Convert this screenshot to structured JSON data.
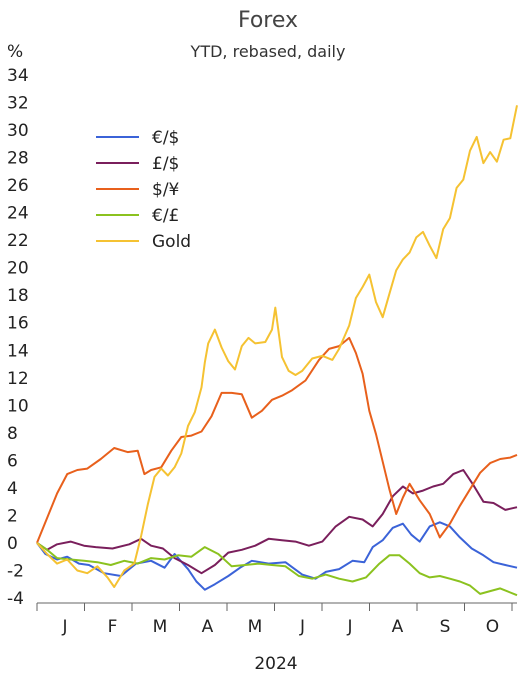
{
  "chart_data": {
    "type": "line",
    "title": "Forex",
    "subtitle": "YTD, rebased, daily",
    "ylabel": "%",
    "xlabel": "2024",
    "ylim": [
      -4,
      34
    ],
    "yticks": [
      34,
      32,
      30,
      28,
      26,
      24,
      22,
      20,
      18,
      16,
      14,
      12,
      10,
      8,
      6,
      4,
      2,
      0,
      -2,
      -4
    ],
    "month_labels": [
      "J",
      "F",
      "M",
      "A",
      "M",
      "J",
      "J",
      "A",
      "S",
      "O"
    ],
    "legend_position": "top-left",
    "grid": false,
    "series": [
      {
        "name": "€/$",
        "color": "#3b63d8",
        "points": [
          [
            0,
            0
          ],
          [
            5,
            -0.8
          ],
          [
            12,
            -1.2
          ],
          [
            18,
            -1
          ],
          [
            25,
            -1.5
          ],
          [
            31,
            -1.6
          ],
          [
            40,
            -2.2
          ],
          [
            50,
            -2.4
          ],
          [
            59,
            -1.5
          ],
          [
            68,
            -1.3
          ],
          [
            76,
            -1.8
          ],
          [
            82,
            -0.8
          ],
          [
            90,
            -1.9
          ],
          [
            95,
            -2.8
          ],
          [
            100,
            -3.4
          ],
          [
            106,
            -3
          ],
          [
            114,
            -2.4
          ],
          [
            121,
            -1.8
          ],
          [
            128,
            -1.3
          ],
          [
            138,
            -1.5
          ],
          [
            148,
            -1.4
          ],
          [
            158,
            -2.3
          ],
          [
            166,
            -2.6
          ],
          [
            172,
            -2.1
          ],
          [
            180,
            -1.9
          ],
          [
            188,
            -1.3
          ],
          [
            195,
            -1.4
          ],
          [
            200,
            -0.3
          ],
          [
            206,
            0.2
          ],
          [
            212,
            1.1
          ],
          [
            218,
            1.4
          ],
          [
            223,
            0.6
          ],
          [
            228,
            0.1
          ],
          [
            234,
            1.2
          ],
          [
            240,
            1.5
          ],
          [
            246,
            1.2
          ],
          [
            252,
            0.4
          ],
          [
            259,
            -0.4
          ],
          [
            266,
            -0.9
          ],
          [
            272,
            -1.4
          ],
          [
            279,
            -1.6
          ],
          [
            286,
            -1.8
          ]
        ]
      },
      {
        "name": "£/$",
        "color": "#7a1f5c",
        "points": [
          [
            0,
            0
          ],
          [
            6,
            -0.5
          ],
          [
            12,
            -0.1
          ],
          [
            20,
            0.1
          ],
          [
            28,
            -0.2
          ],
          [
            35,
            -0.3
          ],
          [
            45,
            -0.4
          ],
          [
            55,
            -0.1
          ],
          [
            62,
            0.3
          ],
          [
            68,
            -0.2
          ],
          [
            75,
            -0.4
          ],
          [
            82,
            -1.1
          ],
          [
            90,
            -1.6
          ],
          [
            98,
            -2.2
          ],
          [
            106,
            -1.6
          ],
          [
            114,
            -0.7
          ],
          [
            122,
            -0.5
          ],
          [
            130,
            -0.2
          ],
          [
            138,
            0.3
          ],
          [
            146,
            0.2
          ],
          [
            154,
            0.1
          ],
          [
            162,
            -0.2
          ],
          [
            170,
            0.1
          ],
          [
            178,
            1.2
          ],
          [
            186,
            1.9
          ],
          [
            194,
            1.7
          ],
          [
            200,
            1.2
          ],
          [
            206,
            2.1
          ],
          [
            212,
            3.4
          ],
          [
            218,
            4.1
          ],
          [
            224,
            3.6
          ],
          [
            230,
            3.8
          ],
          [
            236,
            4.1
          ],
          [
            242,
            4.3
          ],
          [
            248,
            5
          ],
          [
            254,
            5.3
          ],
          [
            260,
            4.2
          ],
          [
            266,
            3
          ],
          [
            272,
            2.9
          ],
          [
            279,
            2.4
          ],
          [
            286,
            2.6
          ]
        ]
      },
      {
        "name": "$/¥",
        "color": "#e8601c",
        "points": [
          [
            0,
            0
          ],
          [
            4,
            1.2
          ],
          [
            8,
            2.4
          ],
          [
            12,
            3.6
          ],
          [
            18,
            5
          ],
          [
            24,
            5.3
          ],
          [
            30,
            5.4
          ],
          [
            38,
            6.1
          ],
          [
            46,
            6.9
          ],
          [
            54,
            6.6
          ],
          [
            60,
            6.7
          ],
          [
            64,
            5
          ],
          [
            68,
            5.3
          ],
          [
            74,
            5.5
          ],
          [
            80,
            6.7
          ],
          [
            86,
            7.7
          ],
          [
            92,
            7.8
          ],
          [
            98,
            8.1
          ],
          [
            104,
            9.2
          ],
          [
            110,
            10.9
          ],
          [
            116,
            10.9
          ],
          [
            122,
            10.8
          ],
          [
            128,
            9.1
          ],
          [
            134,
            9.6
          ],
          [
            140,
            10.4
          ],
          [
            146,
            10.7
          ],
          [
            152,
            11.1
          ],
          [
            160,
            11.8
          ],
          [
            168,
            13.3
          ],
          [
            174,
            14.1
          ],
          [
            180,
            14.3
          ],
          [
            186,
            14.9
          ],
          [
            190,
            13.8
          ],
          [
            194,
            12.3
          ],
          [
            198,
            9.6
          ],
          [
            202,
            7.9
          ],
          [
            206,
            5.9
          ],
          [
            210,
            3.9
          ],
          [
            214,
            2.1
          ],
          [
            218,
            3.3
          ],
          [
            222,
            4.3
          ],
          [
            228,
            3.1
          ],
          [
            234,
            2.1
          ],
          [
            240,
            0.4
          ],
          [
            246,
            1.4
          ],
          [
            252,
            2.7
          ],
          [
            258,
            3.9
          ],
          [
            264,
            5.1
          ],
          [
            270,
            5.8
          ],
          [
            276,
            6.1
          ],
          [
            282,
            6.2
          ],
          [
            286,
            6.4
          ]
        ]
      },
      {
        "name": "€/£",
        "color": "#8bc21f",
        "points": [
          [
            0,
            0
          ],
          [
            6,
            -0.5
          ],
          [
            12,
            -1.1
          ],
          [
            20,
            -1.2
          ],
          [
            28,
            -1.3
          ],
          [
            36,
            -1.4
          ],
          [
            44,
            -1.6
          ],
          [
            52,
            -1.3
          ],
          [
            60,
            -1.5
          ],
          [
            68,
            -1.1
          ],
          [
            76,
            -1.2
          ],
          [
            84,
            -0.9
          ],
          [
            92,
            -1
          ],
          [
            100,
            -0.3
          ],
          [
            108,
            -0.8
          ],
          [
            116,
            -1.7
          ],
          [
            124,
            -1.6
          ],
          [
            132,
            -1.5
          ],
          [
            140,
            -1.6
          ],
          [
            148,
            -1.7
          ],
          [
            156,
            -2.4
          ],
          [
            164,
            -2.6
          ],
          [
            172,
            -2.3
          ],
          [
            180,
            -2.6
          ],
          [
            188,
            -2.8
          ],
          [
            196,
            -2.5
          ],
          [
            204,
            -1.5
          ],
          [
            210,
            -0.9
          ],
          [
            216,
            -0.9
          ],
          [
            222,
            -1.5
          ],
          [
            228,
            -2.2
          ],
          [
            234,
            -2.5
          ],
          [
            240,
            -2.4
          ],
          [
            246,
            -2.6
          ],
          [
            252,
            -2.8
          ],
          [
            258,
            -3.1
          ],
          [
            264,
            -3.7
          ],
          [
            270,
            -3.5
          ],
          [
            276,
            -3.3
          ],
          [
            282,
            -3.6
          ],
          [
            286,
            -3.8
          ]
        ]
      },
      {
        "name": "Gold",
        "color": "#f5c232",
        "points": [
          [
            0,
            0
          ],
          [
            6,
            -0.8
          ],
          [
            12,
            -1.5
          ],
          [
            18,
            -1.2
          ],
          [
            24,
            -2
          ],
          [
            30,
            -2.2
          ],
          [
            36,
            -1.7
          ],
          [
            42,
            -2.5
          ],
          [
            46,
            -3.2
          ],
          [
            52,
            -2
          ],
          [
            58,
            -1.5
          ],
          [
            62,
            0.5
          ],
          [
            66,
            2.8
          ],
          [
            70,
            4.8
          ],
          [
            74,
            5.4
          ],
          [
            78,
            4.9
          ],
          [
            82,
            5.5
          ],
          [
            86,
            6.5
          ],
          [
            90,
            8.5
          ],
          [
            94,
            9.5
          ],
          [
            98,
            11.3
          ],
          [
            100,
            13.1
          ],
          [
            102,
            14.5
          ],
          [
            106,
            15.5
          ],
          [
            110,
            14.2
          ],
          [
            114,
            13.2
          ],
          [
            118,
            12.6
          ],
          [
            122,
            14.3
          ],
          [
            126,
            14.9
          ],
          [
            130,
            14.5
          ],
          [
            136,
            14.6
          ],
          [
            140,
            15.5
          ],
          [
            142,
            17.1
          ],
          [
            146,
            13.5
          ],
          [
            150,
            12.5
          ],
          [
            154,
            12.2
          ],
          [
            158,
            12.5
          ],
          [
            164,
            13.4
          ],
          [
            170,
            13.6
          ],
          [
            176,
            13.3
          ],
          [
            180,
            14.1
          ],
          [
            186,
            15.8
          ],
          [
            190,
            17.8
          ],
          [
            194,
            18.6
          ],
          [
            198,
            19.5
          ],
          [
            202,
            17.5
          ],
          [
            206,
            16.4
          ],
          [
            210,
            18.1
          ],
          [
            214,
            19.8
          ],
          [
            218,
            20.6
          ],
          [
            222,
            21.1
          ],
          [
            226,
            22.2
          ],
          [
            230,
            22.6
          ],
          [
            234,
            21.6
          ],
          [
            238,
            20.7
          ],
          [
            242,
            22.8
          ],
          [
            246,
            23.6
          ],
          [
            250,
            25.8
          ],
          [
            254,
            26.4
          ],
          [
            258,
            28.5
          ],
          [
            262,
            29.5
          ],
          [
            266,
            27.6
          ],
          [
            270,
            28.4
          ],
          [
            274,
            27.7
          ],
          [
            278,
            29.3
          ],
          [
            282,
            29.4
          ],
          [
            286,
            31.8
          ]
        ]
      }
    ]
  }
}
